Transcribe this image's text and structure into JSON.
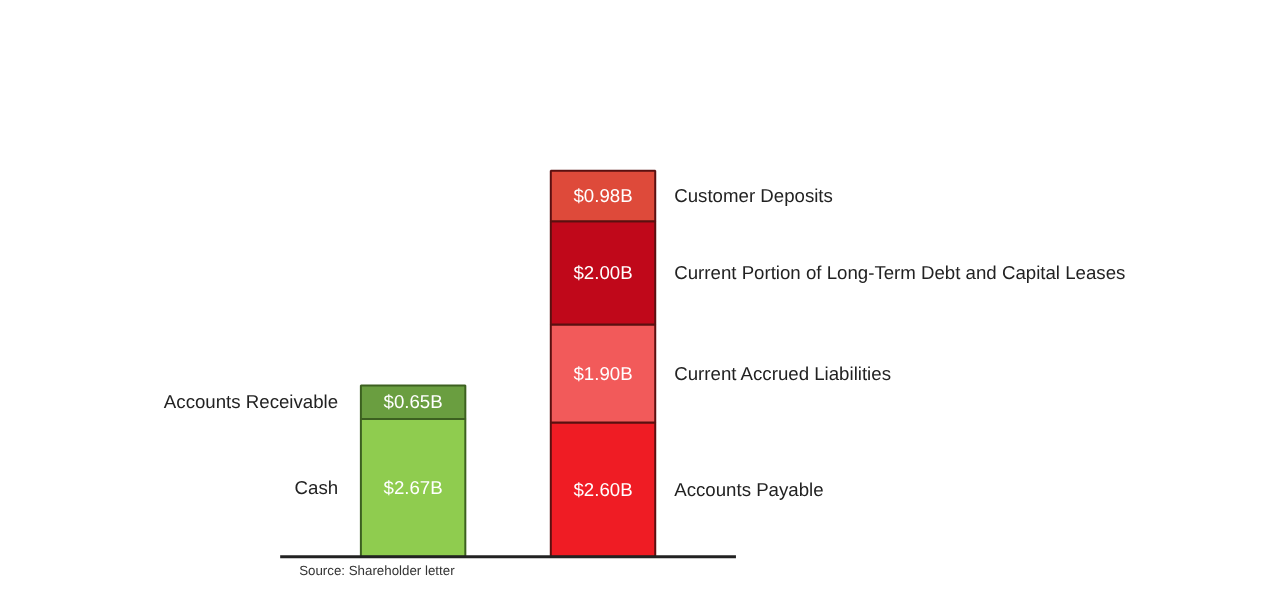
{
  "chart_data": {
    "type": "bar",
    "stacked": true,
    "categories": [
      null,
      null
    ],
    "series": [
      {
        "name": "Cash",
        "color": "#8fcc4f",
        "values": [
          2.67,
          null
        ],
        "value_labels": [
          "$2.67B",
          null
        ]
      },
      {
        "name": "Accounts Receivable",
        "color": "#6a9e40",
        "values": [
          0.65,
          null
        ],
        "value_labels": [
          "$0.65B",
          null
        ]
      },
      {
        "name": "Accounts Payable",
        "color": "#ef1c24",
        "values": [
          null,
          2.6
        ],
        "value_labels": [
          null,
          "$2.60B"
        ]
      },
      {
        "name": "Current Accrued Liabilities",
        "color": "#f25a5a",
        "values": [
          null,
          1.9
        ],
        "value_labels": [
          null,
          "$1.90B"
        ]
      },
      {
        "name": "Current Portion of Long-Term Debt and Capital Leases",
        "color": "#c0081a",
        "values": [
          null,
          2.0
        ],
        "value_labels": [
          null,
          "$2.00B"
        ]
      },
      {
        "name": "Customer Deposits",
        "color": "#de4a3a",
        "values": [
          null,
          0.98
        ],
        "value_labels": [
          null,
          "$0.98B"
        ]
      }
    ],
    "annotations": [
      "Source: Shareholder letter"
    ]
  }
}
